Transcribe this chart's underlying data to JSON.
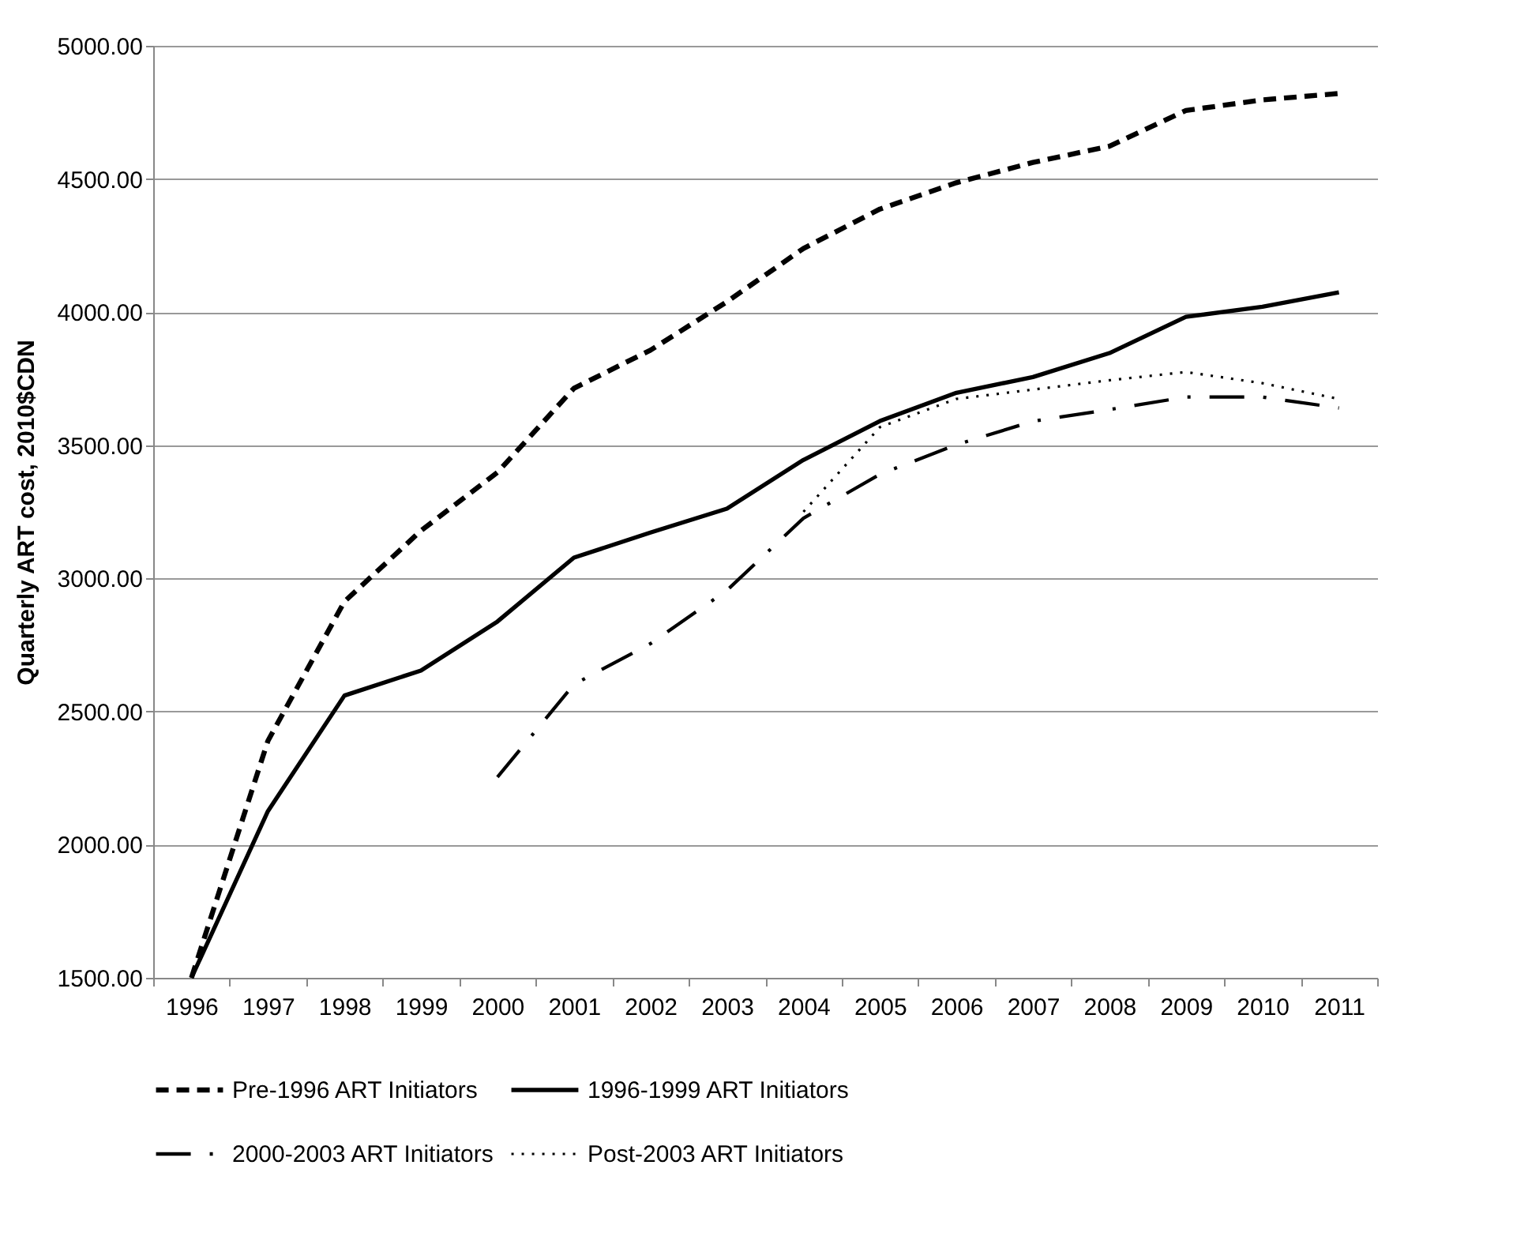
{
  "chart_data": {
    "type": "line",
    "ylabel": "Quarterly ART cost, 2010$CDN",
    "categories": [
      "1996",
      "1997",
      "1998",
      "1999",
      "2000",
      "2001",
      "2002",
      "2003",
      "2004",
      "2005",
      "2006",
      "2007",
      "2008",
      "2009",
      "2010",
      "2011"
    ],
    "series": [
      {
        "name": "Pre-1996 ART Initiators",
        "color": "#000000",
        "line_style": "dashed",
        "values": [
          1500,
          2390,
          2913,
          3179,
          3398,
          3714,
          3857,
          4039,
          4239,
          4387,
          4486,
          4562,
          4623,
          4757,
          4797,
          4821
        ]
      },
      {
        "name": "1996-1999 ART Initiators",
        "color": "#000000",
        "line_style": "solid",
        "values": [
          1500,
          2126,
          2560,
          2654,
          2838,
          3078,
          3172,
          3262,
          3445,
          3591,
          3697,
          3756,
          3846,
          3982,
          4020,
          4074
        ]
      },
      {
        "name": "2000-2003 ART Initiators",
        "color": "#000000",
        "line_style": "dashdot",
        "values": [
          null,
          null,
          null,
          null,
          2254,
          2602,
          2755,
          2955,
          3226,
          3391,
          3502,
          3590,
          3634,
          3681,
          3681,
          3640
        ]
      },
      {
        "name": "Post-2003 ART Initiators",
        "color": "#000000",
        "line_style": "dotted",
        "values": [
          null,
          null,
          null,
          null,
          null,
          null,
          null,
          null,
          3250,
          3568,
          3674,
          3709,
          3744,
          3775,
          3733,
          3674
        ]
      }
    ],
    "ylim": [
      1500,
      5000
    ],
    "yticks": [
      {
        "value": 1500,
        "label": "1500.00"
      },
      {
        "value": 2000,
        "label": "2000.00"
      },
      {
        "value": 2500,
        "label": "2500.00"
      },
      {
        "value": 3000,
        "label": "3000.00"
      },
      {
        "value": 3500,
        "label": "3500.00"
      },
      {
        "value": 4000,
        "label": "4000.00"
      },
      {
        "value": 4500,
        "label": "4500.00"
      },
      {
        "value": 5000,
        "label": "5000.00"
      }
    ],
    "grid": "y",
    "legend": "bottom",
    "marker": "none"
  }
}
